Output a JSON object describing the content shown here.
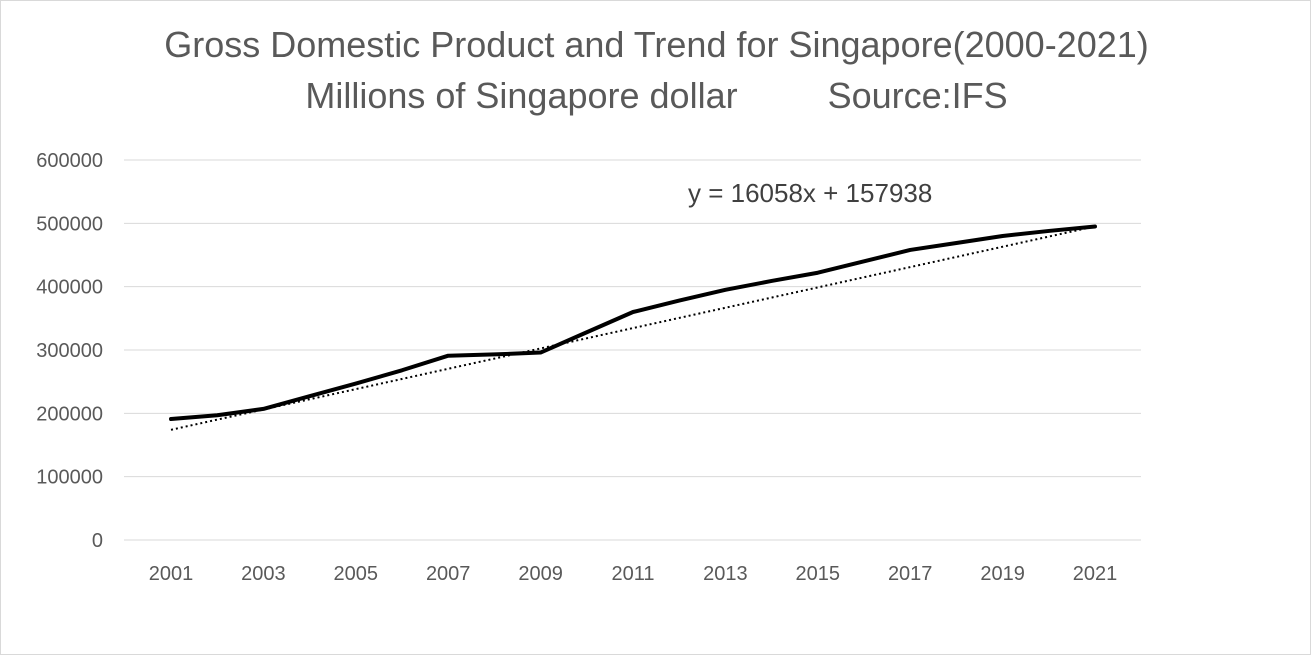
{
  "chart_data": {
    "type": "line",
    "title_line1": "Gross Domestic Product and Trend for Singapore(2000-2021)",
    "title_line2_left": "Millions of Singapore dollar",
    "title_line2_right": "Source:IFS",
    "xlabel": "",
    "ylabel": "",
    "x_tick_labels": [
      "2001",
      "2003",
      "2005",
      "2007",
      "2009",
      "2011",
      "2013",
      "2015",
      "2017",
      "2019",
      "2021"
    ],
    "y_tick_labels": [
      "0",
      "100000",
      "200000",
      "300000",
      "400000",
      "500000",
      "600000"
    ],
    "ylim": [
      0,
      600000
    ],
    "grid": "horizontal",
    "legend": "none",
    "series": [
      {
        "values": [
          191000,
          197000,
          207000,
          227000,
          247000,
          268000,
          291000,
          293000,
          296000,
          328000,
          360000,
          378000,
          395000,
          409000,
          422000,
          440000,
          458000,
          469000,
          480000,
          488000,
          495000
        ]
      }
    ],
    "x": [
      2001,
      2002,
      2003,
      2004,
      2005,
      2006,
      2007,
      2008,
      2009,
      2010,
      2011,
      2012,
      2013,
      2014,
      2015,
      2016,
      2017,
      2018,
      2019,
      2020,
      2021
    ],
    "trendline": {
      "type": "linear",
      "slope": 16058,
      "intercept": 157938,
      "equation_label": "y = 16058x + 157938",
      "style": "dotted"
    },
    "colors": {
      "series": "#000000",
      "trend": "#000000",
      "grid": "#d9d9d9",
      "text": "#595959"
    }
  }
}
